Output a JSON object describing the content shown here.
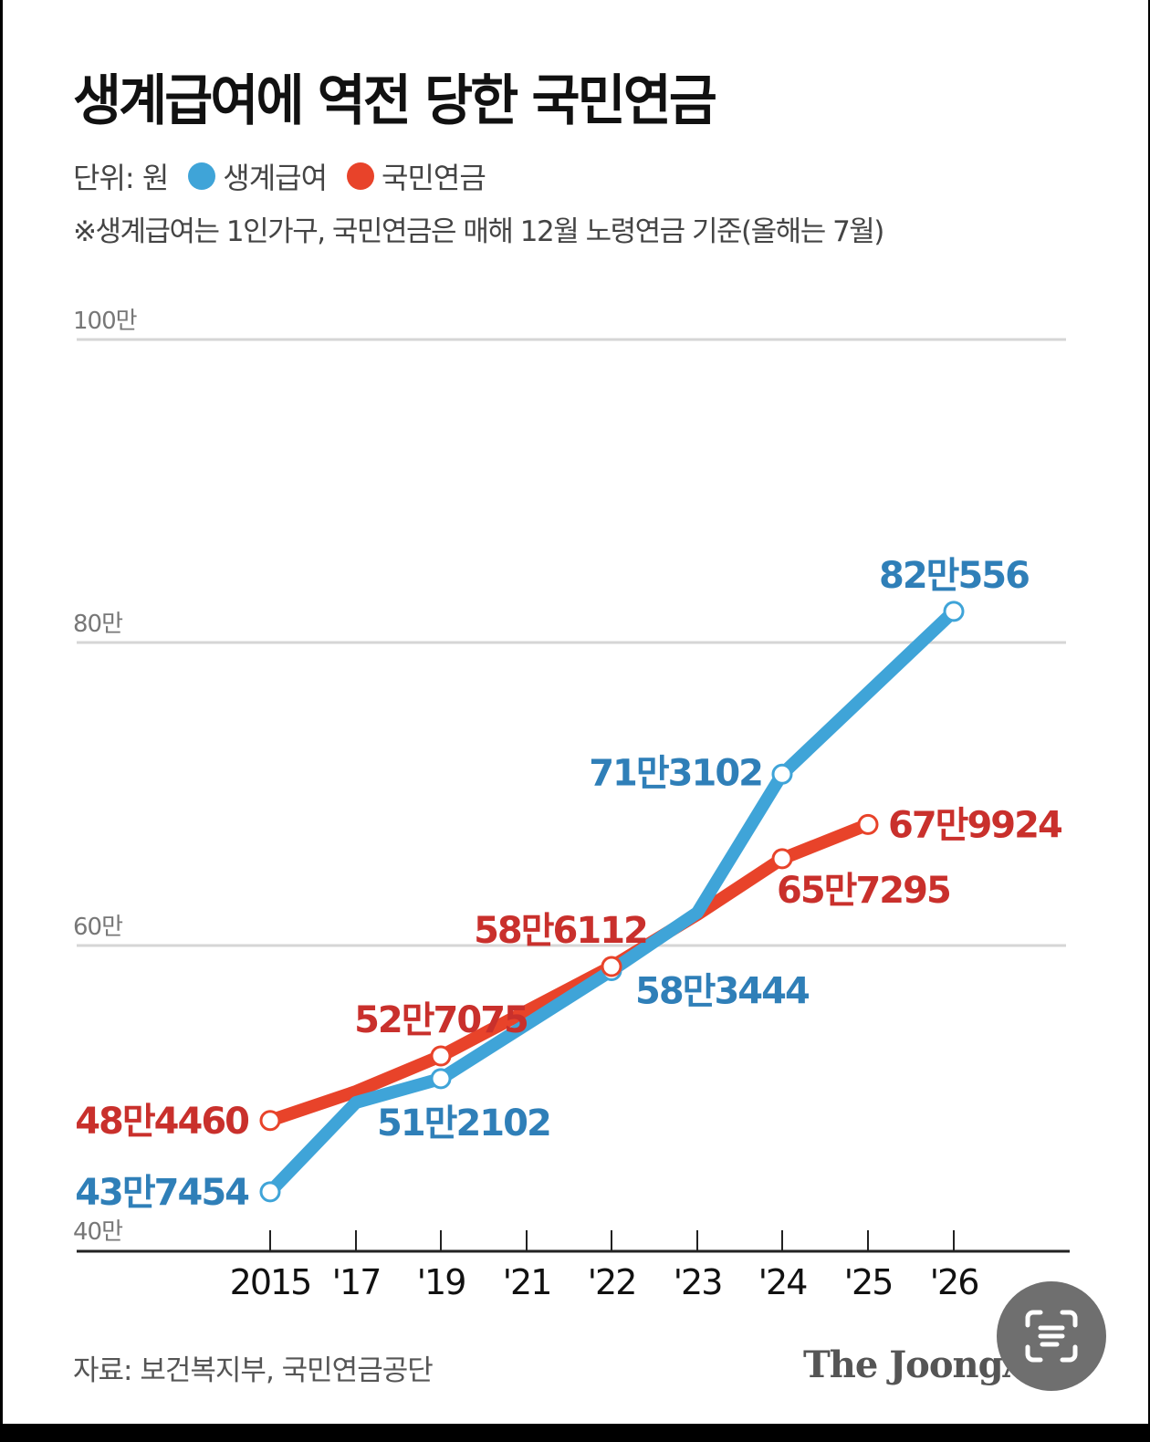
{
  "title": "생계급여에 역전 당한 국민연금",
  "legend": {
    "unit": "단위: 원",
    "items": [
      {
        "label": "생계급여",
        "color": "#3fa4d8"
      },
      {
        "label": "국민연금",
        "color": "#e8432a"
      }
    ]
  },
  "note": "※생계급여는 1인가구, 국민연금은 매해 12월 노령연금 기준(올해는 7월)",
  "source": "자료: 보건복지부, 국민연금공단",
  "brand": "The JoongAng",
  "overlay_button": {
    "icon": "text-scan-icon"
  },
  "chart_data": {
    "type": "line",
    "title": "생계급여에 역전 당한 국민연금",
    "xlabel": "",
    "ylabel": "단위: 원",
    "categories": [
      "2015",
      "'17",
      "'19",
      "'21",
      "'22",
      "'23",
      "'24",
      "'25",
      "'26"
    ],
    "y_ticks": [
      "40만",
      "60만",
      "80만",
      "100만"
    ],
    "ylim": [
      400000,
      1000000
    ],
    "grid": true,
    "legend_position": "top-left",
    "series": [
      {
        "name": "생계급여",
        "color": "#3fa4d8",
        "label_color": "#2f7fb8",
        "points": [
          {
            "x": "2015",
            "value": 437454,
            "label": "43만7454"
          },
          {
            "x": "'19",
            "value": 512102,
            "label": "51만2102"
          },
          {
            "x": "'22",
            "value": 583444,
            "label": "58만3444"
          },
          {
            "x": "'24",
            "value": 713102,
            "label": "71만3102"
          },
          {
            "x": "'26",
            "value": 820556,
            "label": "82만556"
          }
        ]
      },
      {
        "name": "국민연금",
        "color": "#e8432a",
        "label_color": "#c9302c",
        "points": [
          {
            "x": "2015",
            "value": 484460,
            "label": "48만4460"
          },
          {
            "x": "'19",
            "value": 527075,
            "label": "52만7075"
          },
          {
            "x": "'22",
            "value": 586112,
            "label": "58만6112"
          },
          {
            "x": "'24",
            "value": 657295,
            "label": "65만7295"
          },
          {
            "x": "'25",
            "value": 679924,
            "label": "67만9924"
          }
        ]
      }
    ]
  }
}
